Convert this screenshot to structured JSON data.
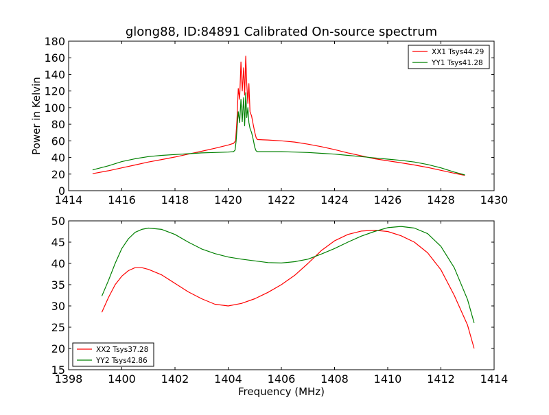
{
  "chart_data": [
    {
      "type": "line",
      "title": "glong88, ID:84891 Calibrated On-source spectrum",
      "xlabel": "",
      "ylabel": "Power in Kelvin",
      "xlim": [
        1414,
        1430
      ],
      "ylim": [
        0,
        180
      ],
      "xticks": [
        "1414",
        "1416",
        "1418",
        "1420",
        "1422",
        "1424",
        "1426",
        "1428",
        "1430"
      ],
      "yticks": [
        "0",
        "20",
        "40",
        "60",
        "80",
        "100",
        "120",
        "140",
        "160",
        "180"
      ],
      "grid": false,
      "legend_position": "top-right",
      "series": [
        {
          "name": "XX1 Tsys44.29",
          "color": "#ff0000",
          "points": [
            [
              1414.9,
              20.5
            ],
            [
              1415.5,
              24
            ],
            [
              1416,
              27.5
            ],
            [
              1416.5,
              31
            ],
            [
              1417,
              34.5
            ],
            [
              1417.5,
              37.5
            ],
            [
              1418,
              40.5
            ],
            [
              1418.5,
              44
            ],
            [
              1419,
              47.5
            ],
            [
              1419.5,
              51
            ],
            [
              1420,
              55
            ],
            [
              1420.2,
              57
            ],
            [
              1420.28,
              60
            ],
            [
              1420.33,
              85
            ],
            [
              1420.38,
              123
            ],
            [
              1420.43,
              110
            ],
            [
              1420.48,
              155
            ],
            [
              1420.53,
              120
            ],
            [
              1420.58,
              148
            ],
            [
              1420.62,
              115
            ],
            [
              1420.66,
              162
            ],
            [
              1420.7,
              128
            ],
            [
              1420.74,
              105
            ],
            [
              1420.78,
              129
            ],
            [
              1420.82,
              95
            ],
            [
              1420.88,
              90
            ],
            [
              1420.94,
              80
            ],
            [
              1421.0,
              70
            ],
            [
              1421.05,
              64
            ],
            [
              1421.1,
              61.5
            ],
            [
              1421.5,
              61
            ],
            [
              1422,
              60
            ],
            [
              1422.5,
              58.5
            ],
            [
              1423,
              56
            ],
            [
              1423.5,
              53
            ],
            [
              1424,
              49.5
            ],
            [
              1424.5,
              45.5
            ],
            [
              1425,
              42
            ],
            [
              1425.5,
              38.5
            ],
            [
              1426,
              36
            ],
            [
              1426.5,
              33.5
            ],
            [
              1427,
              31
            ],
            [
              1427.5,
              28
            ],
            [
              1428,
              24.5
            ],
            [
              1428.5,
              21
            ],
            [
              1428.9,
              18.5
            ]
          ]
        },
        {
          "name": "YY1 Tsys41.28",
          "color": "#008000",
          "points": [
            [
              1414.9,
              25
            ],
            [
              1415.5,
              30
            ],
            [
              1416,
              35
            ],
            [
              1416.5,
              38.5
            ],
            [
              1417,
              41
            ],
            [
              1417.5,
              42.5
            ],
            [
              1418,
              43.5
            ],
            [
              1418.5,
              44.5
            ],
            [
              1419,
              45.5
            ],
            [
              1419.5,
              46
            ],
            [
              1420,
              46.5
            ],
            [
              1420.2,
              47
            ],
            [
              1420.26,
              49
            ],
            [
              1420.3,
              60
            ],
            [
              1420.34,
              78
            ],
            [
              1420.38,
              95
            ],
            [
              1420.43,
              82
            ],
            [
              1420.48,
              110
            ],
            [
              1420.53,
              83
            ],
            [
              1420.58,
              112
            ],
            [
              1420.62,
              78
            ],
            [
              1420.66,
              118
            ],
            [
              1420.7,
              88
            ],
            [
              1420.74,
              100
            ],
            [
              1420.78,
              82
            ],
            [
              1420.82,
              75
            ],
            [
              1420.88,
              70
            ],
            [
              1420.94,
              62
            ],
            [
              1421.0,
              52
            ],
            [
              1421.05,
              48
            ],
            [
              1421.1,
              47
            ],
            [
              1421.5,
              47
            ],
            [
              1422,
              47
            ],
            [
              1422.5,
              46.5
            ],
            [
              1423,
              46
            ],
            [
              1423.5,
              45
            ],
            [
              1424,
              44
            ],
            [
              1424.5,
              42.5
            ],
            [
              1425,
              41
            ],
            [
              1425.5,
              39.5
            ],
            [
              1426,
              38
            ],
            [
              1426.5,
              36.5
            ],
            [
              1427,
              34.5
            ],
            [
              1427.5,
              31.5
            ],
            [
              1428,
              27.5
            ],
            [
              1428.5,
              22.5
            ],
            [
              1428.9,
              19
            ]
          ]
        }
      ]
    },
    {
      "type": "line",
      "title": "",
      "xlabel": "Frequency (MHz)",
      "ylabel": "",
      "xlim": [
        1398,
        1414
      ],
      "ylim": [
        15,
        50
      ],
      "xticks": [
        "1398",
        "1400",
        "1402",
        "1404",
        "1406",
        "1408",
        "1410",
        "1412",
        "1414"
      ],
      "yticks": [
        "15",
        "20",
        "25",
        "30",
        "35",
        "40",
        "45",
        "50"
      ],
      "grid": false,
      "legend_position": "bottom-left",
      "series": [
        {
          "name": "XX2 Tsys37.28",
          "color": "#ff0000",
          "points": [
            [
              1399.25,
              28.5
            ],
            [
              1399.5,
              32
            ],
            [
              1399.75,
              35
            ],
            [
              1400,
              37
            ],
            [
              1400.25,
              38.3
            ],
            [
              1400.5,
              39
            ],
            [
              1400.75,
              39
            ],
            [
              1401,
              38.6
            ],
            [
              1401.5,
              37.3
            ],
            [
              1402,
              35.3
            ],
            [
              1402.5,
              33.3
            ],
            [
              1403,
              31.7
            ],
            [
              1403.5,
              30.4
            ],
            [
              1404,
              30
            ],
            [
              1404.5,
              30.6
            ],
            [
              1405,
              31.7
            ],
            [
              1405.5,
              33.2
            ],
            [
              1406,
              35
            ],
            [
              1406.5,
              37.2
            ],
            [
              1407,
              40
            ],
            [
              1407.5,
              43
            ],
            [
              1408,
              45.3
            ],
            [
              1408.5,
              46.8
            ],
            [
              1409,
              47.6
            ],
            [
              1409.5,
              47.8
            ],
            [
              1410,
              47.5
            ],
            [
              1410.5,
              46.5
            ],
            [
              1411,
              45
            ],
            [
              1411.5,
              42.5
            ],
            [
              1412,
              38.5
            ],
            [
              1412.5,
              32.5
            ],
            [
              1413,
              25.5
            ],
            [
              1413.25,
              20
            ]
          ]
        },
        {
          "name": "YY2 Tsys42.86",
          "color": "#008000",
          "points": [
            [
              1399.25,
              32.3
            ],
            [
              1399.5,
              36
            ],
            [
              1399.75,
              40
            ],
            [
              1400,
              43.5
            ],
            [
              1400.25,
              45.8
            ],
            [
              1400.5,
              47.3
            ],
            [
              1400.75,
              48
            ],
            [
              1401,
              48.3
            ],
            [
              1401.5,
              48
            ],
            [
              1402,
              46.8
            ],
            [
              1402.5,
              45
            ],
            [
              1403,
              43.4
            ],
            [
              1403.5,
              42.3
            ],
            [
              1404,
              41.5
            ],
            [
              1404.5,
              41
            ],
            [
              1405,
              40.6
            ],
            [
              1405.5,
              40.2
            ],
            [
              1406,
              40.1
            ],
            [
              1406.5,
              40.4
            ],
            [
              1407,
              41
            ],
            [
              1407.5,
              42.2
            ],
            [
              1408,
              43.5
            ],
            [
              1408.5,
              45
            ],
            [
              1409,
              46.4
            ],
            [
              1409.5,
              47.5
            ],
            [
              1410,
              48.4
            ],
            [
              1410.5,
              48.7
            ],
            [
              1411,
              48.3
            ],
            [
              1411.5,
              47
            ],
            [
              1412,
              44
            ],
            [
              1412.5,
              39
            ],
            [
              1413,
              31.5
            ],
            [
              1413.25,
              26
            ]
          ]
        }
      ]
    }
  ]
}
